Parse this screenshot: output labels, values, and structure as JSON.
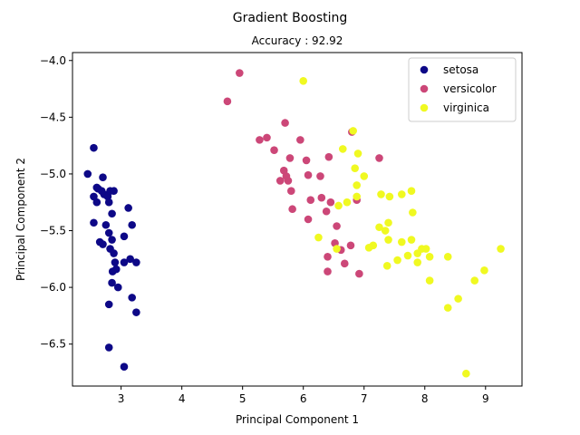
{
  "chart_data": {
    "type": "scatter",
    "title": "Gradient Boosting",
    "subtitle": "Accuracy : 92.92",
    "xlabel": "Principal Component 1",
    "ylabel": "Principal Component 2",
    "xlim": [
      2.2,
      9.6
    ],
    "ylim": [
      -6.87,
      -3.93
    ],
    "xticks": [
      3,
      4,
      5,
      6,
      7,
      8,
      9
    ],
    "yticks": [
      -6.5,
      -6.0,
      -5.5,
      -5.0,
      -4.5,
      -4.0
    ],
    "xtick_labels": [
      "3",
      "4",
      "5",
      "6",
      "7",
      "8",
      "9"
    ],
    "ytick_labels": [
      "−6.5",
      "−6.0",
      "−5.5",
      "−5.0",
      "−4.5",
      "−4.0"
    ],
    "grid": false,
    "legend_position": "top-right",
    "series": [
      {
        "name": "setosa",
        "color": "#0d0887",
        "points": [
          [
            2.45,
            -5.0
          ],
          [
            2.55,
            -4.77
          ],
          [
            2.7,
            -5.03
          ],
          [
            2.55,
            -5.2
          ],
          [
            2.6,
            -5.12
          ],
          [
            2.62,
            -5.13
          ],
          [
            2.68,
            -5.15
          ],
          [
            2.6,
            -5.25
          ],
          [
            2.72,
            -5.18
          ],
          [
            2.78,
            -5.2
          ],
          [
            2.8,
            -5.25
          ],
          [
            2.82,
            -5.15
          ],
          [
            2.88,
            -5.15
          ],
          [
            2.85,
            -5.35
          ],
          [
            2.55,
            -5.43
          ],
          [
            2.75,
            -5.45
          ],
          [
            2.8,
            -5.52
          ],
          [
            2.85,
            -5.58
          ],
          [
            2.65,
            -5.6
          ],
          [
            2.7,
            -5.62
          ],
          [
            2.82,
            -5.66
          ],
          [
            2.88,
            -5.7
          ],
          [
            2.9,
            -5.78
          ],
          [
            2.92,
            -5.84
          ],
          [
            2.86,
            -5.86
          ],
          [
            3.05,
            -5.55
          ],
          [
            3.12,
            -5.3
          ],
          [
            3.18,
            -5.45
          ],
          [
            3.05,
            -5.78
          ],
          [
            3.15,
            -5.75
          ],
          [
            3.25,
            -5.78
          ],
          [
            2.85,
            -5.96
          ],
          [
            2.95,
            -6.0
          ],
          [
            3.18,
            -6.09
          ],
          [
            2.8,
            -6.15
          ],
          [
            3.25,
            -6.22
          ],
          [
            2.8,
            -6.53
          ],
          [
            3.05,
            -6.7
          ]
        ]
      },
      {
        "name": "versicolor",
        "color": "#cc4778",
        "points": [
          [
            4.95,
            -4.11
          ],
          [
            4.75,
            -4.36
          ],
          [
            5.28,
            -4.7
          ],
          [
            5.4,
            -4.68
          ],
          [
            5.52,
            -4.79
          ],
          [
            5.7,
            -4.55
          ],
          [
            5.95,
            -4.7
          ],
          [
            5.78,
            -4.86
          ],
          [
            5.68,
            -4.97
          ],
          [
            5.72,
            -5.02
          ],
          [
            5.62,
            -5.06
          ],
          [
            5.75,
            -5.06
          ],
          [
            6.05,
            -4.88
          ],
          [
            6.42,
            -4.85
          ],
          [
            6.08,
            -5.01
          ],
          [
            6.28,
            -5.02
          ],
          [
            5.8,
            -5.15
          ],
          [
            6.3,
            -5.21
          ],
          [
            6.12,
            -5.23
          ],
          [
            6.45,
            -5.25
          ],
          [
            5.82,
            -5.31
          ],
          [
            6.38,
            -5.33
          ],
          [
            6.08,
            -5.4
          ],
          [
            6.55,
            -5.46
          ],
          [
            6.52,
            -5.61
          ],
          [
            6.62,
            -5.67
          ],
          [
            6.4,
            -5.73
          ],
          [
            6.68,
            -5.79
          ],
          [
            6.4,
            -5.86
          ],
          [
            6.78,
            -5.63
          ],
          [
            6.92,
            -5.88
          ],
          [
            6.88,
            -5.23
          ],
          [
            6.8,
            -4.63
          ],
          [
            7.25,
            -4.86
          ]
        ]
      },
      {
        "name": "virginica",
        "color": "#f0f921",
        "points": [
          [
            6.0,
            -4.18
          ],
          [
            6.82,
            -4.62
          ],
          [
            6.65,
            -4.78
          ],
          [
            6.9,
            -4.82
          ],
          [
            6.85,
            -4.95
          ],
          [
            7.0,
            -5.02
          ],
          [
            6.88,
            -5.1
          ],
          [
            6.88,
            -5.2
          ],
          [
            6.72,
            -5.25
          ],
          [
            6.58,
            -5.28
          ],
          [
            7.28,
            -5.18
          ],
          [
            7.42,
            -5.2
          ],
          [
            7.62,
            -5.18
          ],
          [
            7.78,
            -5.15
          ],
          [
            7.8,
            -5.34
          ],
          [
            7.4,
            -5.43
          ],
          [
            7.25,
            -5.47
          ],
          [
            7.35,
            -5.5
          ],
          [
            7.4,
            -5.58
          ],
          [
            7.62,
            -5.6
          ],
          [
            7.78,
            -5.58
          ],
          [
            7.95,
            -5.66
          ],
          [
            8.02,
            -5.66
          ],
          [
            7.08,
            -5.65
          ],
          [
            7.15,
            -5.63
          ],
          [
            7.72,
            -5.72
          ],
          [
            7.88,
            -5.7
          ],
          [
            8.08,
            -5.73
          ],
          [
            8.38,
            -5.73
          ],
          [
            7.88,
            -5.78
          ],
          [
            7.55,
            -5.76
          ],
          [
            7.38,
            -5.81
          ],
          [
            8.98,
            -5.85
          ],
          [
            8.82,
            -5.94
          ],
          [
            8.08,
            -5.94
          ],
          [
            8.55,
            -6.1
          ],
          [
            8.38,
            -6.18
          ],
          [
            9.25,
            -5.66
          ],
          [
            6.25,
            -5.56
          ],
          [
            6.55,
            -5.66
          ],
          [
            8.68,
            -6.76
          ]
        ]
      }
    ]
  }
}
